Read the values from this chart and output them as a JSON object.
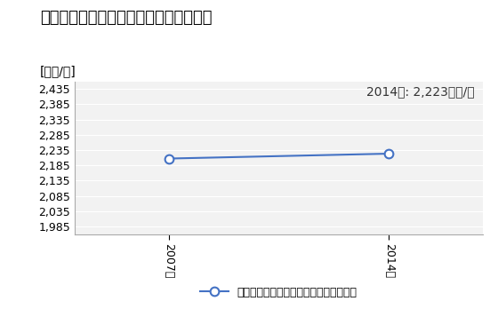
{
  "title": "商業の従業者一人当たり年間商品販売額",
  "ylabel": "[万円/人]",
  "annotation": "2014年: 2,223万円/人",
  "years": [
    2007,
    2014
  ],
  "values": [
    2207,
    2223
  ],
  "yticks": [
    1985,
    2035,
    2085,
    2135,
    2185,
    2235,
    2285,
    2335,
    2385,
    2435
  ],
  "ylim": [
    1960,
    2460
  ],
  "line_color": "#4472C4",
  "marker": "o",
  "marker_facecolor": "white",
  "marker_edgecolor": "#4472C4",
  "legend_label": "商業の従業者一人当たり年間商品販売額",
  "background_color": "#FFFFFF",
  "plot_bg_color": "#F2F2F2",
  "title_fontsize": 13,
  "axis_fontsize": 9,
  "annotation_fontsize": 10
}
